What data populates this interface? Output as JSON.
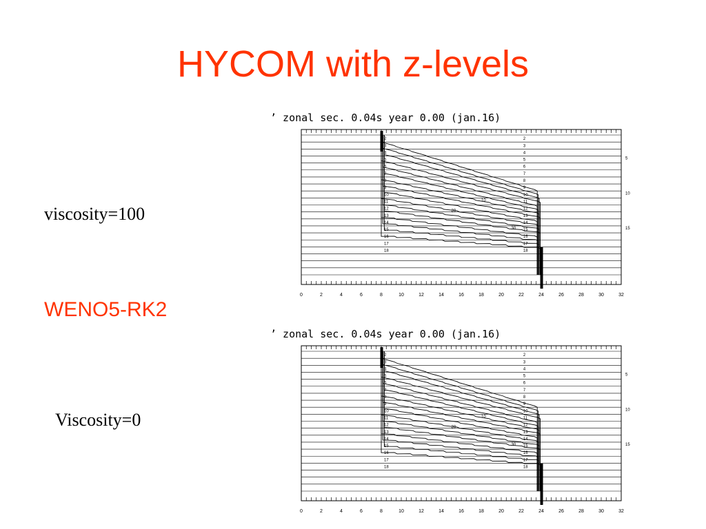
{
  "slide": {
    "title": "HYCOM with z-levels",
    "label_visc100": "viscosity=100",
    "label_scheme": "WENO5-RK2",
    "label_visc0": "Viscosity=0"
  },
  "panels": [
    {
      "title": "zonal sec.  0.04s   year   0.00 (jan.16)",
      "x_ticks": [
        "0",
        "2",
        "4",
        "6",
        "8",
        "10",
        "12",
        "14",
        "16",
        "18",
        "20",
        "22",
        "24",
        "26",
        "28",
        "30",
        "32"
      ],
      "left_levels": [
        "2",
        "3",
        "4",
        "5",
        "6",
        "7",
        "8",
        "9",
        "10",
        "11",
        "12",
        "13",
        "14",
        "15",
        "16",
        "17",
        "18"
      ],
      "right_levels": [
        "2",
        "3",
        "4",
        "5",
        "6",
        "7",
        "8",
        "9",
        "10",
        "11",
        "12",
        "13",
        "14",
        "15",
        "16",
        "17",
        "18"
      ],
      "right_margin_labels": [
        "5",
        "10",
        "15"
      ],
      "inline_labels": [
        "10",
        "20",
        "30"
      ]
    },
    {
      "title": "zonal sec.  0.04s   year   0.00 (jan.16)",
      "x_ticks": [
        "0",
        "2",
        "4",
        "6",
        "8",
        "10",
        "12",
        "14",
        "16",
        "18",
        "20",
        "22",
        "24",
        "26",
        "28",
        "30",
        "32"
      ],
      "left_levels": [
        "2",
        "3",
        "4",
        "5",
        "6",
        "7",
        "8",
        "9",
        "10",
        "11",
        "12",
        "13",
        "14",
        "15",
        "16",
        "17",
        "18"
      ],
      "right_levels": [
        "2",
        "3",
        "4",
        "5",
        "6",
        "7",
        "8",
        "9",
        "10",
        "11",
        "12",
        "13",
        "14",
        "15",
        "16",
        "17",
        "18"
      ],
      "right_margin_labels": [
        "5",
        "10",
        "15"
      ],
      "inline_labels": [
        "10",
        "20",
        "30"
      ]
    }
  ]
}
